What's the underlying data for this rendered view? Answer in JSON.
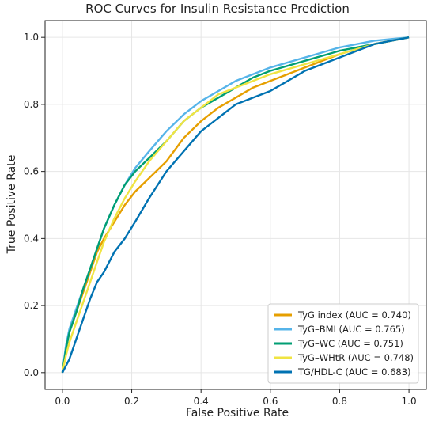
{
  "chart_data": {
    "type": "line",
    "title": "ROC Curves for Insulin Resistance Prediction",
    "xlabel": "False Positive Rate",
    "ylabel": "True Positive Rate",
    "xlim": [
      -0.05,
      1.05
    ],
    "ylim": [
      -0.05,
      1.05
    ],
    "xticks": [
      0.0,
      0.2,
      0.4,
      0.6,
      0.8,
      1.0
    ],
    "yticks": [
      0.0,
      0.2,
      0.4,
      0.6,
      0.8,
      1.0
    ],
    "xtick_labels": [
      "0.0",
      "0.2",
      "0.4",
      "0.6",
      "0.8",
      "1.0"
    ],
    "ytick_labels": [
      "0.0",
      "0.2",
      "0.4",
      "0.6",
      "0.8",
      "1.0"
    ],
    "grid": true,
    "legend_position": "lower-right",
    "series": [
      {
        "name": "TyG index (AUC = 0.740)",
        "color": "#E69F00",
        "points": [
          [
            0,
            0
          ],
          [
            0.01,
            0.07
          ],
          [
            0.02,
            0.12
          ],
          [
            0.04,
            0.18
          ],
          [
            0.06,
            0.24
          ],
          [
            0.08,
            0.3
          ],
          [
            0.1,
            0.36
          ],
          [
            0.12,
            0.4
          ],
          [
            0.15,
            0.45
          ],
          [
            0.18,
            0.5
          ],
          [
            0.21,
            0.54
          ],
          [
            0.25,
            0.58
          ],
          [
            0.3,
            0.63
          ],
          [
            0.35,
            0.7
          ],
          [
            0.4,
            0.75
          ],
          [
            0.45,
            0.79
          ],
          [
            0.5,
            0.82
          ],
          [
            0.55,
            0.85
          ],
          [
            0.6,
            0.87
          ],
          [
            0.7,
            0.91
          ],
          [
            0.8,
            0.95
          ],
          [
            0.9,
            0.98
          ],
          [
            1.0,
            1.0
          ]
        ]
      },
      {
        "name": "TyG–BMI (AUC = 0.765)",
        "color": "#56B4E9",
        "points": [
          [
            0,
            0
          ],
          [
            0.01,
            0.08
          ],
          [
            0.02,
            0.13
          ],
          [
            0.04,
            0.19
          ],
          [
            0.06,
            0.25
          ],
          [
            0.08,
            0.31
          ],
          [
            0.1,
            0.37
          ],
          [
            0.12,
            0.43
          ],
          [
            0.15,
            0.5
          ],
          [
            0.18,
            0.56
          ],
          [
            0.21,
            0.61
          ],
          [
            0.25,
            0.66
          ],
          [
            0.3,
            0.72
          ],
          [
            0.35,
            0.77
          ],
          [
            0.4,
            0.81
          ],
          [
            0.45,
            0.84
          ],
          [
            0.5,
            0.87
          ],
          [
            0.55,
            0.89
          ],
          [
            0.6,
            0.91
          ],
          [
            0.7,
            0.94
          ],
          [
            0.8,
            0.97
          ],
          [
            0.9,
            0.99
          ],
          [
            1.0,
            1.0
          ]
        ]
      },
      {
        "name": "TyG–WC (AUC = 0.751)",
        "color": "#009E73",
        "points": [
          [
            0,
            0
          ],
          [
            0.01,
            0.07
          ],
          [
            0.02,
            0.12
          ],
          [
            0.04,
            0.18
          ],
          [
            0.06,
            0.25
          ],
          [
            0.08,
            0.31
          ],
          [
            0.1,
            0.37
          ],
          [
            0.12,
            0.43
          ],
          [
            0.15,
            0.5
          ],
          [
            0.18,
            0.56
          ],
          [
            0.21,
            0.6
          ],
          [
            0.25,
            0.64
          ],
          [
            0.3,
            0.69
          ],
          [
            0.35,
            0.75
          ],
          [
            0.4,
            0.79
          ],
          [
            0.45,
            0.82
          ],
          [
            0.5,
            0.85
          ],
          [
            0.55,
            0.88
          ],
          [
            0.6,
            0.9
          ],
          [
            0.7,
            0.93
          ],
          [
            0.8,
            0.96
          ],
          [
            0.9,
            0.98
          ],
          [
            1.0,
            1.0
          ]
        ]
      },
      {
        "name": "TyG–WHtR (AUC = 0.748)",
        "color": "#F0E442",
        "points": [
          [
            0,
            0
          ],
          [
            0.01,
            0.05
          ],
          [
            0.02,
            0.09
          ],
          [
            0.04,
            0.15
          ],
          [
            0.06,
            0.21
          ],
          [
            0.08,
            0.27
          ],
          [
            0.1,
            0.33
          ],
          [
            0.12,
            0.39
          ],
          [
            0.15,
            0.46
          ],
          [
            0.18,
            0.52
          ],
          [
            0.21,
            0.57
          ],
          [
            0.25,
            0.63
          ],
          [
            0.3,
            0.69
          ],
          [
            0.35,
            0.75
          ],
          [
            0.4,
            0.79
          ],
          [
            0.45,
            0.83
          ],
          [
            0.5,
            0.85
          ],
          [
            0.55,
            0.87
          ],
          [
            0.6,
            0.89
          ],
          [
            0.7,
            0.92
          ],
          [
            0.8,
            0.95
          ],
          [
            0.9,
            0.98
          ],
          [
            1.0,
            1.0
          ]
        ]
      },
      {
        "name": "TG/HDL-C (AUC = 0.683)",
        "color": "#0072B2",
        "points": [
          [
            0,
            0
          ],
          [
            0.02,
            0.04
          ],
          [
            0.04,
            0.1
          ],
          [
            0.06,
            0.16
          ],
          [
            0.08,
            0.22
          ],
          [
            0.1,
            0.27
          ],
          [
            0.12,
            0.3
          ],
          [
            0.15,
            0.36
          ],
          [
            0.18,
            0.4
          ],
          [
            0.21,
            0.45
          ],
          [
            0.25,
            0.52
          ],
          [
            0.3,
            0.6
          ],
          [
            0.35,
            0.66
          ],
          [
            0.4,
            0.72
          ],
          [
            0.45,
            0.76
          ],
          [
            0.5,
            0.8
          ],
          [
            0.55,
            0.82
          ],
          [
            0.6,
            0.84
          ],
          [
            0.65,
            0.87
          ],
          [
            0.7,
            0.9
          ],
          [
            0.8,
            0.94
          ],
          [
            0.9,
            0.98
          ],
          [
            1.0,
            1.0
          ]
        ]
      }
    ]
  }
}
